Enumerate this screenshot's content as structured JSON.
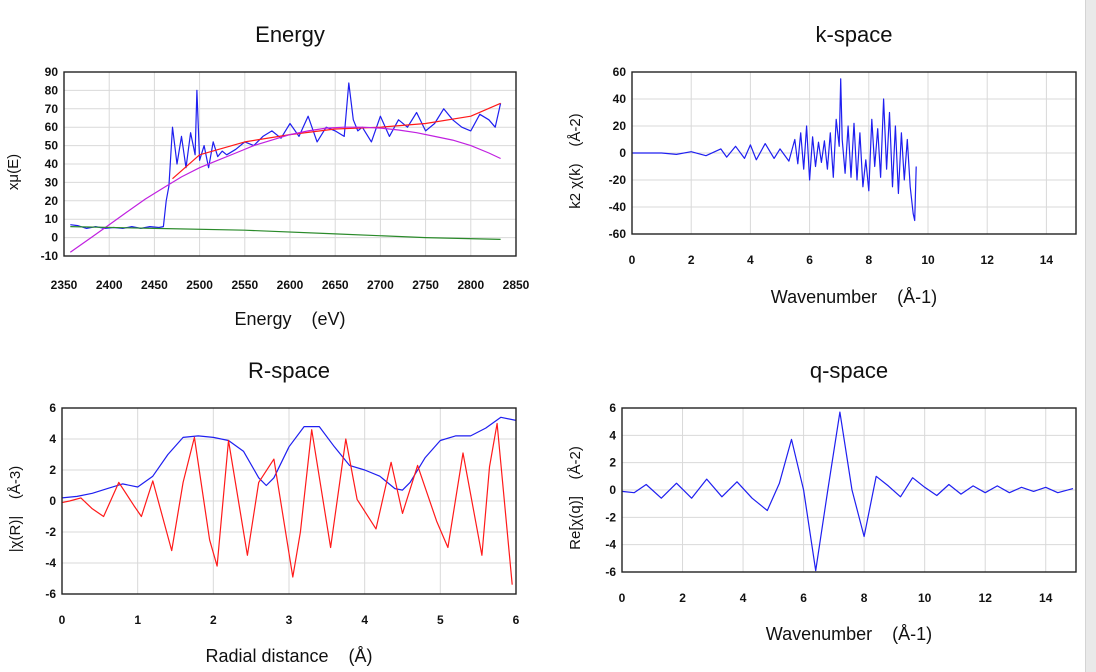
{
  "colors": {
    "blue": "#1f1ff0",
    "red": "#ff1a1a",
    "magenta": "#c020e0",
    "green": "#2a8a2a",
    "grid": "#d9d9d9"
  },
  "chart_data": [
    {
      "id": "energy",
      "type": "line",
      "title": "Energy",
      "xlabel": "Energy    (eV)",
      "ylabel": "xμ(E)",
      "xlim": [
        2350,
        2850
      ],
      "ylim": [
        -10,
        90
      ],
      "xticks": [
        2350,
        2400,
        2450,
        2500,
        2550,
        2600,
        2650,
        2700,
        2750,
        2800,
        2850
      ],
      "yticks": [
        -10,
        0,
        10,
        20,
        30,
        40,
        50,
        60,
        70,
        80,
        90
      ],
      "grid": true,
      "series": [
        {
          "color": "blue",
          "x": [
            2357,
            2365,
            2375,
            2385,
            2395,
            2405,
            2415,
            2425,
            2435,
            2445,
            2455,
            2460,
            2463,
            2466,
            2470,
            2475,
            2480,
            2485,
            2490,
            2495,
            2497,
            2500,
            2505,
            2510,
            2515,
            2520,
            2525,
            2530,
            2540,
            2550,
            2560,
            2570,
            2580,
            2590,
            2600,
            2610,
            2620,
            2630,
            2640,
            2650,
            2660,
            2665,
            2670,
            2675,
            2680,
            2690,
            2700,
            2710,
            2720,
            2730,
            2740,
            2750,
            2760,
            2770,
            2780,
            2790,
            2800,
            2810,
            2820,
            2827,
            2833
          ],
          "y": [
            7,
            6.5,
            5,
            6,
            5,
            5.5,
            5,
            6,
            5,
            6,
            5.5,
            6,
            20,
            28,
            60,
            40,
            55,
            38,
            57,
            45,
            80,
            42,
            50,
            38,
            52,
            44,
            47,
            45,
            48,
            52,
            50,
            55,
            58,
            54,
            62,
            55,
            66,
            52,
            60,
            58,
            55,
            84,
            64,
            58,
            60,
            52,
            66,
            55,
            64,
            60,
            68,
            58,
            62,
            70,
            64,
            60,
            58,
            67,
            64,
            60,
            73
          ]
        },
        {
          "color": "red",
          "x": [
            2470,
            2500,
            2550,
            2600,
            2650,
            2700,
            2750,
            2800,
            2833
          ],
          "y": [
            32,
            45,
            52,
            56,
            59,
            60,
            62,
            66,
            73
          ]
        },
        {
          "color": "magenta",
          "x": [
            2357,
            2380,
            2400,
            2420,
            2440,
            2460,
            2480,
            2500,
            2520,
            2540,
            2560,
            2580,
            2600,
            2620,
            2640,
            2660,
            2680,
            2700,
            2720,
            2740,
            2760,
            2780,
            2800,
            2820,
            2833
          ],
          "y": [
            -8,
            0,
            7,
            14,
            21,
            27,
            33,
            38,
            42,
            46,
            50,
            53,
            56,
            58,
            59.5,
            60,
            60,
            59.5,
            58.5,
            57,
            55,
            53,
            50,
            46,
            43
          ]
        },
        {
          "color": "green",
          "x": [
            2357,
            2450,
            2550,
            2650,
            2750,
            2833
          ],
          "y": [
            6,
            5,
            4,
            2,
            0,
            -1
          ]
        }
      ]
    },
    {
      "id": "kspace",
      "type": "line",
      "title": "k-space",
      "xlabel": "Wavenumber    (Å-1)",
      "ylabel": "k2 χ(k)    (Å-2)",
      "xlim": [
        0,
        15
      ],
      "ylim": [
        -60,
        60
      ],
      "xticks": [
        0,
        2,
        4,
        6,
        8,
        10,
        12,
        14
      ],
      "yticks": [
        -60,
        -40,
        -20,
        0,
        20,
        40,
        60
      ],
      "grid": true,
      "series": [
        {
          "color": "blue",
          "x": [
            0,
            1,
            1.5,
            2,
            2.5,
            3,
            3.2,
            3.5,
            3.8,
            4,
            4.2,
            4.5,
            4.8,
            5,
            5.3,
            5.5,
            5.6,
            5.7,
            5.8,
            5.9,
            6,
            6.1,
            6.2,
            6.3,
            6.4,
            6.5,
            6.6,
            6.7,
            6.8,
            6.9,
            7,
            7.05,
            7.1,
            7.2,
            7.3,
            7.4,
            7.5,
            7.6,
            7.7,
            7.8,
            7.9,
            8,
            8.1,
            8.2,
            8.3,
            8.4,
            8.5,
            8.6,
            8.7,
            8.8,
            8.9,
            9,
            9.1,
            9.2,
            9.3,
            9.4,
            9.5,
            9.55,
            9.6
          ],
          "y": [
            0,
            0,
            -1,
            1,
            -2,
            3,
            -3,
            5,
            -4,
            6,
            -5,
            7,
            -4,
            3,
            -6,
            10,
            -8,
            15,
            -12,
            20,
            -20,
            12,
            -10,
            8,
            -7,
            9,
            -12,
            15,
            -18,
            25,
            5,
            55,
            10,
            -15,
            20,
            -18,
            22,
            -20,
            15,
            -25,
            -5,
            -28,
            25,
            -10,
            18,
            -18,
            40,
            -12,
            30,
            -25,
            20,
            -30,
            15,
            -20,
            10,
            -25,
            -45,
            -50,
            -10
          ]
        }
      ]
    },
    {
      "id": "rspace",
      "type": "line",
      "title": "R-space",
      "xlabel": "Radial distance    (Å)",
      "ylabel": "|χ(R)|    (Å-3)",
      "xlim": [
        0,
        6
      ],
      "ylim": [
        -6,
        6
      ],
      "xticks": [
        0,
        1,
        2,
        3,
        4,
        5,
        6
      ],
      "yticks": [
        -6,
        -4,
        -2,
        0,
        2,
        4,
        6
      ],
      "grid": true,
      "series": [
        {
          "color": "blue",
          "x": [
            0,
            0.2,
            0.4,
            0.6,
            0.8,
            1,
            1.2,
            1.4,
            1.6,
            1.8,
            2,
            2.2,
            2.4,
            2.6,
            2.7,
            2.8,
            3,
            3.2,
            3.4,
            3.6,
            3.8,
            4,
            4.2,
            4.4,
            4.5,
            4.6,
            4.8,
            5,
            5.2,
            5.4,
            5.6,
            5.8,
            6
          ],
          "y": [
            0.2,
            0.3,
            0.5,
            0.8,
            1.1,
            0.9,
            1.6,
            3,
            4.1,
            4.2,
            4.1,
            3.9,
            3.2,
            1.5,
            1,
            1.5,
            3.5,
            4.8,
            4.8,
            3.5,
            2.3,
            2,
            1.6,
            0.8,
            0.7,
            1.2,
            2.8,
            3.9,
            4.2,
            4.2,
            4.7,
            5.4,
            5.2
          ]
        },
        {
          "color": "red",
          "x": [
            0,
            0.1,
            0.25,
            0.4,
            0.55,
            0.75,
            0.95,
            1.05,
            1.2,
            1.45,
            1.6,
            1.75,
            1.95,
            2.05,
            2.2,
            2.45,
            2.6,
            2.8,
            3.05,
            3.15,
            3.3,
            3.55,
            3.75,
            3.9,
            4.15,
            4.35,
            4.5,
            4.7,
            4.95,
            5.1,
            5.3,
            5.55,
            5.65,
            5.75,
            5.95
          ],
          "y": [
            -0.1,
            0,
            0.2,
            -0.5,
            -1,
            1.2,
            -0.3,
            -1,
            1.3,
            -3.2,
            1.2,
            4.1,
            -2.5,
            -4.2,
            3.9,
            -3.5,
            1.2,
            2.7,
            -4.9,
            -2,
            4.6,
            -3,
            4,
            0.1,
            -1.8,
            2.5,
            -0.8,
            2.3,
            -1.3,
            -3,
            3.1,
            -3.5,
            2.2,
            5,
            -5.4
          ]
        }
      ]
    },
    {
      "id": "qspace",
      "type": "line",
      "title": "q-space",
      "xlabel": "Wavenumber    (Å-1)",
      "ylabel": "Re[χ(q)]    (Å-2)",
      "xlim": [
        0,
        15
      ],
      "ylim": [
        -6,
        6
      ],
      "xticks": [
        0,
        2,
        4,
        6,
        8,
        10,
        12,
        14
      ],
      "yticks": [
        -6,
        -4,
        -2,
        0,
        2,
        4,
        6
      ],
      "grid": true,
      "series": [
        {
          "color": "blue",
          "x": [
            0,
            0.4,
            0.8,
            1.3,
            1.8,
            2.3,
            2.8,
            3.3,
            3.8,
            4.3,
            4.8,
            5.2,
            5.6,
            6,
            6.4,
            6.8,
            7.2,
            7.6,
            8,
            8.4,
            8.8,
            9.2,
            9.6,
            10,
            10.4,
            10.8,
            11.2,
            11.6,
            12,
            12.4,
            12.8,
            13.2,
            13.6,
            14,
            14.4,
            14.9
          ],
          "y": [
            -0.1,
            -0.2,
            0.4,
            -0.6,
            0.5,
            -0.6,
            0.8,
            -0.5,
            0.6,
            -0.6,
            -1.5,
            0.5,
            3.7,
            0,
            -5.9,
            0,
            5.7,
            0,
            -3.4,
            1,
            0.3,
            -0.5,
            0.9,
            0.2,
            -0.4,
            0.4,
            -0.3,
            0.3,
            -0.2,
            0.3,
            -0.2,
            0.2,
            -0.1,
            0.2,
            -0.2,
            0.1
          ]
        }
      ]
    }
  ]
}
